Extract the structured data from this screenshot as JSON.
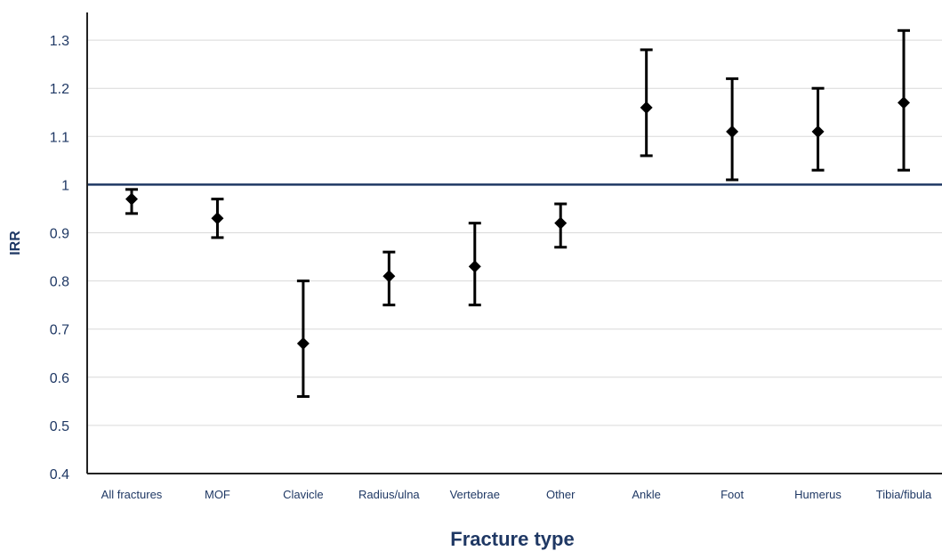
{
  "chart_data": {
    "type": "scatter",
    "title": "",
    "xlabel": "Fracture type",
    "ylabel": "IRR",
    "ylim": [
      0.4,
      1.35
    ],
    "yticks": [
      "0.4",
      "0.5",
      "0.6",
      "0.7",
      "0.8",
      "0.9",
      "1",
      "1.1",
      "1.2",
      "1.3"
    ],
    "grid": true,
    "legend": "none",
    "reference_line": 1.0,
    "categories": [
      "All fractures",
      "MOF",
      "Clavicle",
      "Radius/ulna",
      "Vertebrae",
      "Other",
      "Ankle",
      "Foot",
      "Humerus",
      "Tibia/fibula"
    ],
    "series": [
      {
        "values": [
          0.97,
          0.93,
          0.67,
          0.81,
          0.83,
          0.92,
          1.16,
          1.11,
          1.11,
          1.17
        ],
        "lower": [
          0.94,
          0.89,
          0.56,
          0.75,
          0.75,
          0.87,
          1.06,
          1.01,
          1.03,
          1.03
        ],
        "upper": [
          0.99,
          0.97,
          0.8,
          0.86,
          0.92,
          0.96,
          1.28,
          1.22,
          1.2,
          1.32
        ]
      }
    ],
    "colors": {
      "text": "#1f3864",
      "reference": "#1f3864",
      "marker": "#000000",
      "grid": "#d9d9d9"
    }
  }
}
